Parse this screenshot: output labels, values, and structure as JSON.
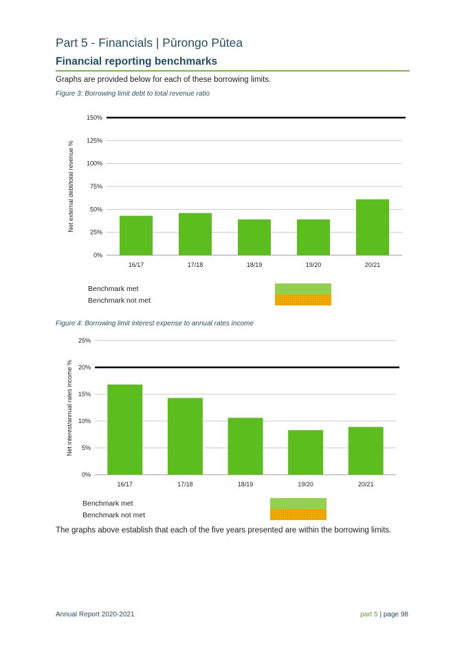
{
  "header": {
    "part_title": "Part 5 - Financials | Pūrongo Pūtea",
    "section_title": "Financial reporting benchmarks"
  },
  "intro": "Graphs are provided below for each of these borrowing limits.",
  "figures": [
    {
      "caption": "Figure 3: Borrowing limit debt to total revenue ratio"
    },
    {
      "caption": "Figure 4: Borrowing limit interest expense to annual rates income"
    }
  ],
  "chart_data": [
    {
      "type": "bar",
      "ylabel": "Net external debt/total revenue %",
      "categories": [
        "16/17",
        "17/18",
        "18/19",
        "19/20",
        "20/21"
      ],
      "values": [
        43,
        46,
        39,
        39,
        61
      ],
      "ylim": [
        0,
        150
      ],
      "yticks": [
        0,
        25,
        50,
        75,
        100,
        125,
        150
      ],
      "tick_suffix": "%",
      "benchmark": 150,
      "bar_color": "#5bbd1e",
      "benchmark_color": "#000000",
      "grid": true
    },
    {
      "type": "bar",
      "ylabel": "Net interest/annual rates income %",
      "categories": [
        "16/17",
        "17/18",
        "18/19",
        "19/20",
        "20/21"
      ],
      "values": [
        16.8,
        14.3,
        10.6,
        8.3,
        8.9
      ],
      "ylim": [
        0,
        25
      ],
      "yticks": [
        0,
        5,
        10,
        15,
        20,
        25
      ],
      "tick_suffix": "%",
      "benchmark": 20,
      "bar_color": "#5bbd1e",
      "benchmark_color": "#000000",
      "grid": true
    }
  ],
  "legend": {
    "met_label": "Benchmark met",
    "not_met_label": "Benchmark not met",
    "met_color": "#92d050",
    "not_met_color": "#f5b800"
  },
  "conclusion": "The graphs above establish that each of the five years presented are within the borrowing limits.",
  "footer": {
    "left": "Annual Report 2020-2021",
    "part": "part 5",
    "separator": "|",
    "page": "page 98"
  }
}
